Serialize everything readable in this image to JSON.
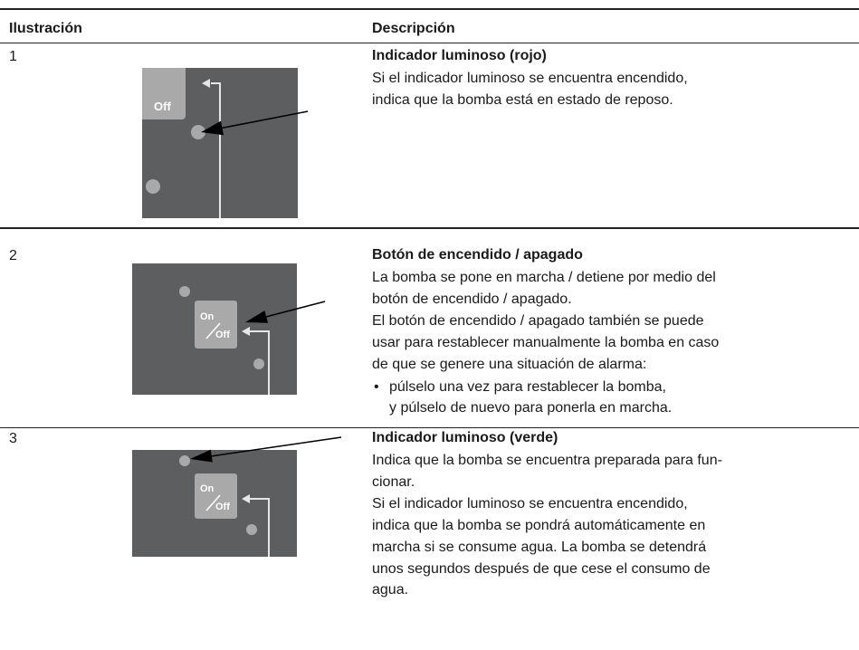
{
  "header": {
    "illustration": "Ilustración",
    "description": "Descripción"
  },
  "rows": [
    {
      "number": "1",
      "illustration": {
        "labels": [
          "Off"
        ]
      },
      "title": "Indicador luminoso (rojo)",
      "paragraphs": [
        [
          "Si el indicador luminoso se encuentra encendido,",
          "indica que la bomba está en estado de reposo."
        ]
      ],
      "bullets": []
    },
    {
      "number": "2",
      "illustration": {
        "labels": [
          "On",
          "Off"
        ]
      },
      "title": "Botón de encendido / apagado",
      "paragraphs": [
        [
          "La bomba se pone en marcha / detiene por medio del",
          "botón de encendido / apagado."
        ],
        [
          "El botón de encendido / apagado también se puede",
          "usar para restablecer manualmente la bomba en caso",
          "de que se genere una situación de alarma:"
        ]
      ],
      "bullets": [
        [
          "púlselo una vez para restablecer la bomba,",
          "y púlselo de nuevo para ponerla en marcha."
        ]
      ]
    },
    {
      "number": "3",
      "illustration": {
        "labels": [
          "On",
          "Off"
        ]
      },
      "title": "Indicador luminoso (verde)",
      "paragraphs": [
        [
          "Indica que la bomba se encuentra preparada para fun-",
          "cionar."
        ],
        [
          "Si el indicador luminoso se encuentra encendido,",
          "indica que la bomba se pondrá automáticamente en",
          "marcha si se consume agua. La bomba se detendrá",
          "unos segundos después de que cese el consumo de",
          "agua."
        ]
      ],
      "bullets": []
    }
  ]
}
